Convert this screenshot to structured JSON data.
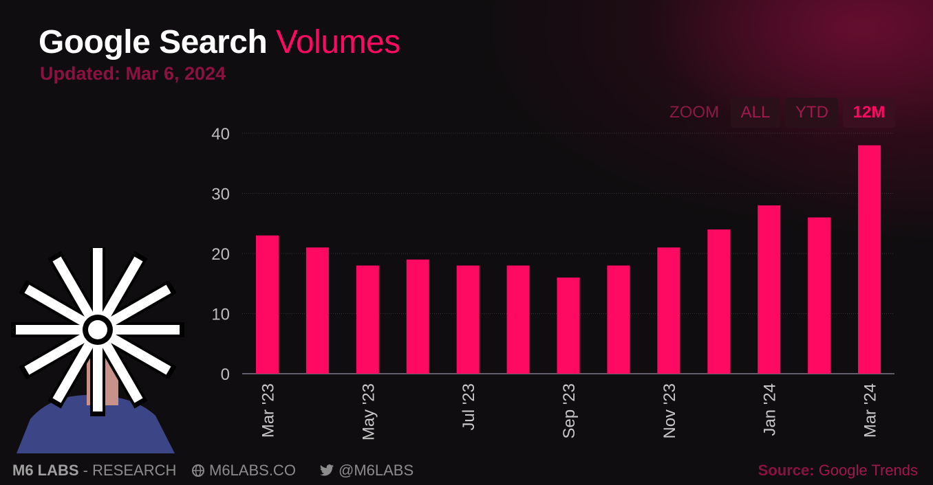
{
  "title": {
    "main": "Google Search",
    "accent": "Volumes"
  },
  "subtitle": "Updated: Mar 6, 2024",
  "zoom": {
    "label": "ZOOM",
    "buttons": [
      "ALL",
      "YTD",
      "12M"
    ],
    "active": "12M"
  },
  "footer": {
    "brand": "M6 LABS",
    "brand_sep": " - ",
    "brand_suffix": "RESEARCH",
    "website": "M6LABS.CO",
    "twitter": "@M6LABS",
    "source_label": "Source:",
    "source_value": "Google Trends"
  },
  "icons": {
    "website": "globe-icon",
    "twitter": "twitter-bird-icon"
  },
  "colors": {
    "bar": "#ff0a62",
    "accent": "#ff0a62",
    "subtitle": "#8b1240",
    "background": "#0f0d0f"
  },
  "chart_data": {
    "type": "bar",
    "categories": [
      "Mar '23",
      "Apr '23",
      "May '23",
      "Jun '23",
      "Jul '23",
      "Aug '23",
      "Sep '23",
      "Oct '23",
      "Nov '23",
      "Dec '23",
      "Jan '24",
      "Feb '24",
      "Mar '24"
    ],
    "values": [
      23,
      21,
      18,
      19,
      18,
      18,
      16,
      18,
      21,
      24,
      28,
      26,
      38
    ],
    "x_tick_labels": [
      "Mar '23",
      "",
      "May '23",
      "",
      "Jul '23",
      "",
      "Sep '23",
      "",
      "Nov '23",
      "",
      "Jan '24",
      "",
      "Mar '24"
    ],
    "y_ticks": [
      0,
      10,
      20,
      30,
      40
    ],
    "ylim": [
      0,
      40
    ],
    "grid": true,
    "legend": "none"
  }
}
